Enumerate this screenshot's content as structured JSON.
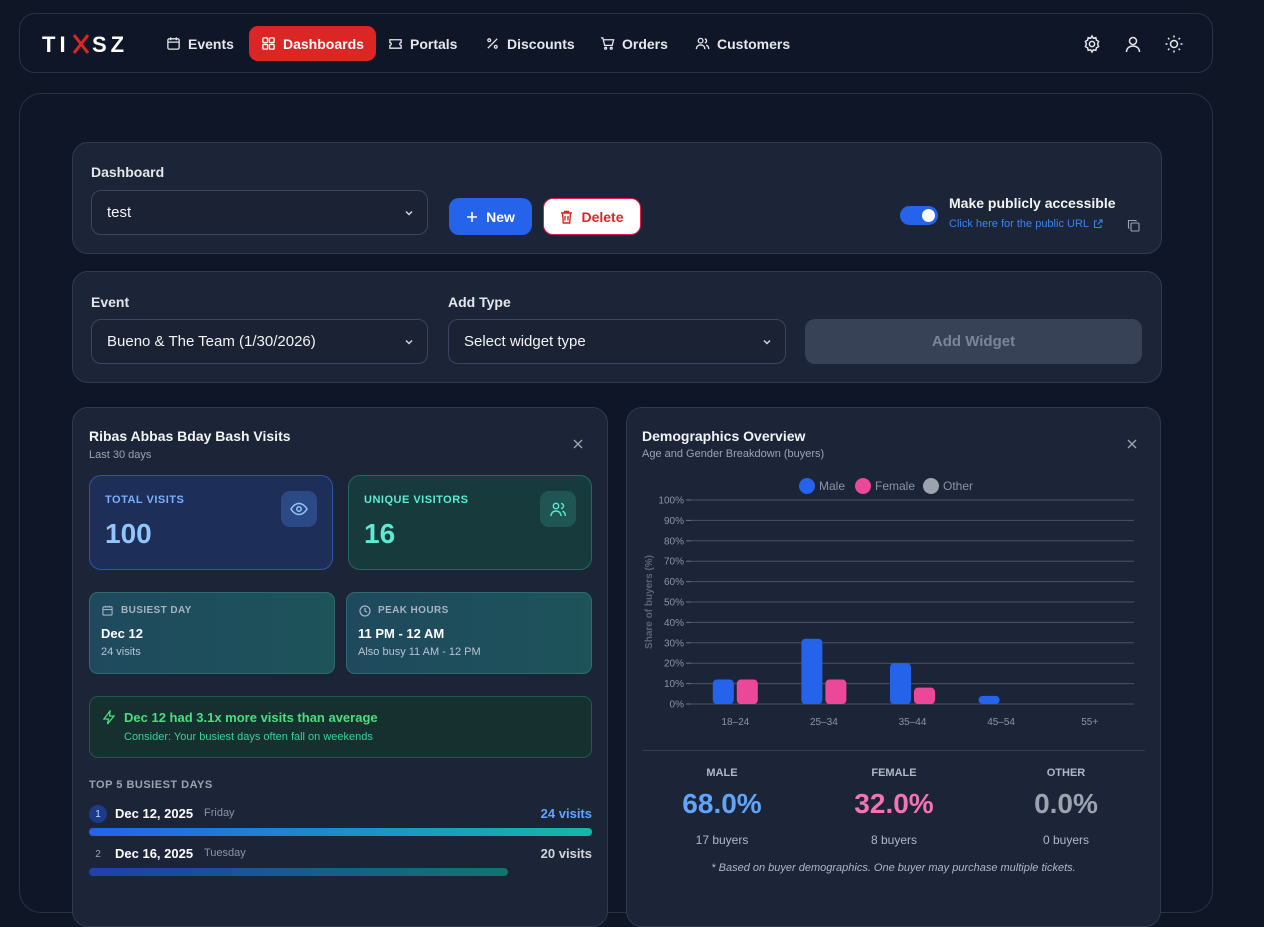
{
  "nav": {
    "logo": "TIXSZ",
    "items": [
      {
        "label": "Events",
        "icon": "calendar-icon"
      },
      {
        "label": "Dashboards",
        "icon": "dashboard-icon",
        "active": true
      },
      {
        "label": "Portals",
        "icon": "ticket-icon"
      },
      {
        "label": "Discounts",
        "icon": "percent-icon"
      },
      {
        "label": "Orders",
        "icon": "cart-icon"
      },
      {
        "label": "Customers",
        "icon": "users-icon"
      }
    ],
    "right_icons": [
      "gear-icon",
      "user-icon",
      "sun-icon"
    ]
  },
  "dashboard_panel": {
    "label": "Dashboard",
    "selected": "test",
    "new_label": "New",
    "delete_label": "Delete",
    "public_toggle_on": true,
    "public_label": "Make publicly accessible",
    "public_link": "Click here for the public URL"
  },
  "widget_panel": {
    "event_label": "Event",
    "event_selected": "Bueno & The Team (1/30/2026)",
    "type_label": "Add Type",
    "type_placeholder": "Select widget type",
    "add_widget_label": "Add Widget"
  },
  "visits_card": {
    "title": "Ribas Abbas Bday Bash Visits",
    "subtitle": "Last 30 days",
    "total_visits_label": "TOTAL VISITS",
    "total_visits": "100",
    "unique_visitors_label": "UNIQUE VISITORS",
    "unique_visitors": "16",
    "busiest_day_label": "BUSIEST DAY",
    "busiest_day": "Dec 12",
    "busiest_day_visits": "24 visits",
    "peak_hours_label": "PEAK HOURS",
    "peak_hours": "11 PM - 12 AM",
    "peak_hours_also": "Also busy 11 AM - 12 PM",
    "insight_title": "Dec 12 had 3.1x more visits than average",
    "insight_sub": "Consider: Your busiest days often fall on weekends",
    "top_days_label": "TOP 5 BUSIEST DAYS",
    "top_days": [
      {
        "rank": "1",
        "date": "Dec 12, 2025",
        "weekday": "Friday",
        "visits": "24 visits",
        "value": 24
      },
      {
        "rank": "2",
        "date": "Dec 16, 2025",
        "weekday": "Tuesday",
        "visits": "20 visits",
        "value": 20
      }
    ]
  },
  "demographics_card": {
    "title": "Demographics Overview",
    "subtitle": "Age and Gender Breakdown (buyers)",
    "male_label": "MALE",
    "male_pct": "68.0%",
    "male_buyers": "17 buyers",
    "female_label": "FEMALE",
    "female_pct": "32.0%",
    "female_buyers": "8 buyers",
    "other_label": "OTHER",
    "other_pct": "0.0%",
    "other_buyers": "0 buyers",
    "footnote": "* Based on buyer demographics. One buyer may purchase multiple tickets."
  },
  "chart_data": {
    "type": "bar",
    "categories": [
      "18–24",
      "25–34",
      "35–44",
      "45–54",
      "55+"
    ],
    "series": [
      {
        "name": "Male",
        "color": "#2563eb",
        "values": [
          12,
          32,
          20,
          4,
          0
        ]
      },
      {
        "name": "Female",
        "color": "#ec4899",
        "values": [
          12,
          12,
          8,
          0,
          0
        ]
      },
      {
        "name": "Other",
        "color": "#9ca3af",
        "values": [
          0,
          0,
          0,
          0,
          0
        ]
      }
    ],
    "ylabel": "Share of buyers (%)",
    "ylim": [
      0,
      100
    ],
    "yticks": [
      "0%",
      "10%",
      "20%",
      "30%",
      "40%",
      "50%",
      "60%",
      "70%",
      "80%",
      "90%",
      "100%"
    ],
    "legend_position": "top",
    "grid": true
  }
}
